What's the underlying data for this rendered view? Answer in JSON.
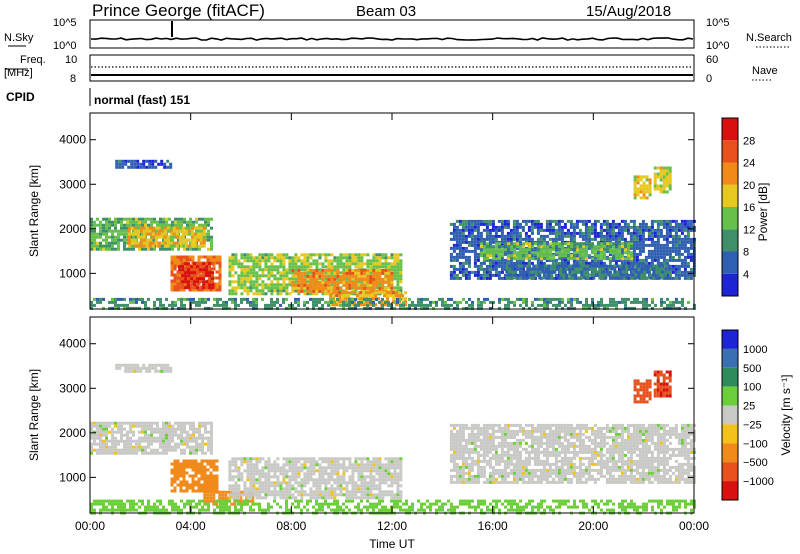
{
  "header": {
    "station": "Prince George (fitACF)",
    "beam": "Beam 03",
    "date": "15/Aug/2018"
  },
  "sky_panel": {
    "left_label": "N.Sky",
    "right_label": "N.Search",
    "tick_hi": "10^5",
    "tick_lo": "10^0"
  },
  "freq_panel": {
    "left_label_1": "Freq.",
    "left_label_2": "[MHz]",
    "left_tick_hi": "10",
    "left_tick_lo": "8",
    "right_label": "Nave",
    "right_tick_hi": "60",
    "right_tick_lo": "0",
    "cpid_label": "CPID",
    "cpid_value": "normal (fast) 151"
  },
  "colors": {
    "power_scale": [
      "#1c24d6",
      "#2f5fb0",
      "#3f8f6a",
      "#66c04a",
      "#e6c81e",
      "#f08a1a",
      "#e8501c",
      "#d81010"
    ],
    "velocity_scale": [
      "#1c24d6",
      "#3a6fb2",
      "#2e8a5a",
      "#6ccf3a",
      "#c8c8c4",
      "#f2c21a",
      "#f08a1a",
      "#e8501c",
      "#d81010"
    ]
  },
  "chart_data": [
    {
      "type": "heatmap",
      "name": "power",
      "ylabel": "Slant Range [km]",
      "xlabel": "",
      "x_ticks": [
        "00:00",
        "04:00",
        "08:00",
        "12:00",
        "16:00",
        "20:00",
        "00:00"
      ],
      "y_ticks": [
        "1000",
        "2000",
        "3000",
        "4000"
      ],
      "ylim": [
        200,
        4600
      ],
      "xlim_hours": [
        0,
        24
      ],
      "colorbar_label": "Power [dB]",
      "colorbar_ticks": [
        "4",
        "8",
        "12",
        "16",
        "20",
        "24",
        "28"
      ],
      "colorbar_range": [
        0,
        32
      ],
      "regions": [
        {
          "t0": 0.0,
          "t1": 4.8,
          "r0": 1550,
          "r1": 2250,
          "level": 13
        },
        {
          "t0": 1.5,
          "t1": 4.5,
          "r0": 1600,
          "r1": 2050,
          "level": 19
        },
        {
          "t0": 3.2,
          "t1": 5.2,
          "r0": 600,
          "r1": 1400,
          "level": 24
        },
        {
          "t0": 3.5,
          "t1": 4.9,
          "r0": 700,
          "r1": 1250,
          "level": 29
        },
        {
          "t0": 5.5,
          "t1": 12.3,
          "r0": 550,
          "r1": 1450,
          "level": 15
        },
        {
          "t0": 8.0,
          "t1": 12.0,
          "r0": 600,
          "r1": 1100,
          "level": 22
        },
        {
          "t0": 9.5,
          "t1": 12.5,
          "r0": 300,
          "r1": 600,
          "level": 21
        },
        {
          "t0": 0.0,
          "t1": 24.0,
          "r0": 200,
          "r1": 450,
          "level": 10
        },
        {
          "t0": 14.3,
          "t1": 24.0,
          "r0": 900,
          "r1": 2200,
          "level": 6
        },
        {
          "t0": 15.5,
          "t1": 21.5,
          "r0": 1300,
          "r1": 1700,
          "level": 14
        },
        {
          "t0": 16.5,
          "t1": 23.0,
          "r0": 900,
          "r1": 1200,
          "level": 8
        },
        {
          "t0": 21.6,
          "t1": 22.2,
          "r0": 2700,
          "r1": 3200,
          "level": 18
        },
        {
          "t0": 22.4,
          "t1": 23.0,
          "r0": 2800,
          "r1": 3400,
          "level": 17
        },
        {
          "t0": 1.0,
          "t1": 3.2,
          "r0": 3350,
          "r1": 3550,
          "level": 5
        }
      ]
    },
    {
      "type": "heatmap",
      "name": "velocity",
      "ylabel": "Slant Range [km]",
      "xlabel": "Time UT",
      "x_ticks": [
        "00:00",
        "04:00",
        "08:00",
        "12:00",
        "16:00",
        "20:00",
        "00:00"
      ],
      "y_ticks": [
        "1000",
        "2000",
        "3000",
        "4000"
      ],
      "ylim": [
        200,
        4600
      ],
      "xlim_hours": [
        0,
        24
      ],
      "colorbar_label": "Velocity [m s⁻¹]",
      "colorbar_ticks": [
        "1000",
        "500",
        "100",
        "25",
        "−25",
        "−100",
        "−500",
        "−1000"
      ],
      "regions": [
        {
          "t0": 0.0,
          "t1": 4.8,
          "r0": 1550,
          "r1": 2250,
          "vel": 0
        },
        {
          "t0": 3.2,
          "t1": 5.0,
          "r0": 700,
          "r1": 1400,
          "vel": -300
        },
        {
          "t0": 4.5,
          "t1": 6.5,
          "r0": 400,
          "r1": 700,
          "vel": -150
        },
        {
          "t0": 5.5,
          "t1": 12.3,
          "r0": 550,
          "r1": 1450,
          "vel": 0
        },
        {
          "t0": 0.0,
          "t1": 24.0,
          "r0": 200,
          "r1": 500,
          "vel": 60
        },
        {
          "t0": 14.3,
          "t1": 24.0,
          "r0": 900,
          "r1": 2200,
          "vel": 0
        },
        {
          "t0": 21.6,
          "t1": 22.2,
          "r0": 2700,
          "r1": 3200,
          "vel": -700
        },
        {
          "t0": 22.4,
          "t1": 23.0,
          "r0": 2800,
          "r1": 3400,
          "vel": -900
        },
        {
          "t0": 1.0,
          "t1": 3.2,
          "r0": 3350,
          "r1": 3550,
          "vel": 0
        }
      ]
    }
  ]
}
